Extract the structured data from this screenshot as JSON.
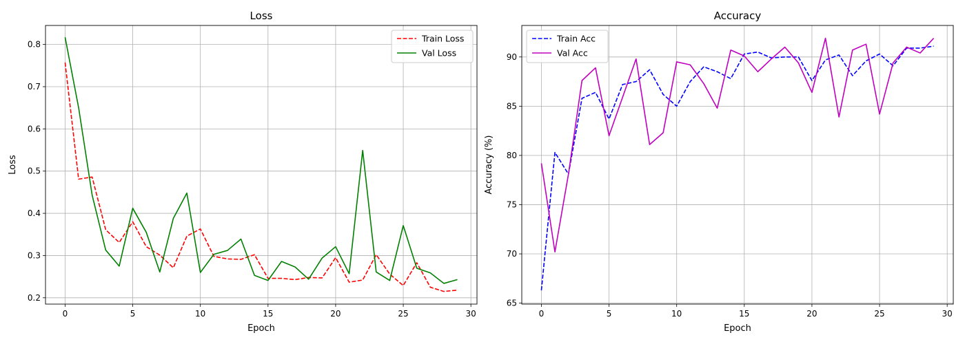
{
  "chart_data": [
    {
      "type": "line",
      "title": "Loss",
      "xlabel": "Epoch",
      "ylabel": "Loss",
      "xlim": [
        -1.45,
        30.45
      ],
      "ylim": [
        0.185,
        0.845
      ],
      "xticks": [
        0,
        5,
        10,
        15,
        20,
        25,
        30
      ],
      "yticks": [
        0.2,
        0.3,
        0.4,
        0.5,
        0.6,
        0.7,
        0.8
      ],
      "grid": true,
      "legend_position": "top-right",
      "x": [
        0,
        1,
        2,
        3,
        4,
        5,
        6,
        7,
        8,
        9,
        10,
        11,
        12,
        13,
        14,
        15,
        16,
        17,
        18,
        19,
        20,
        21,
        22,
        23,
        24,
        25,
        26,
        27,
        28,
        29
      ],
      "series": [
        {
          "name": "Train Loss",
          "color": "#ff0000",
          "linestyle": "dashed",
          "values": [
            0.757,
            0.481,
            0.486,
            0.361,
            0.331,
            0.38,
            0.321,
            0.301,
            0.271,
            0.346,
            0.363,
            0.298,
            0.292,
            0.291,
            0.302,
            0.246,
            0.246,
            0.243,
            0.248,
            0.247,
            0.295,
            0.237,
            0.242,
            0.302,
            0.256,
            0.229,
            0.283,
            0.225,
            0.215,
            0.218
          ]
        },
        {
          "name": "Val Loss",
          "color": "#008000",
          "linestyle": "solid",
          "values": [
            0.817,
            0.65,
            0.443,
            0.313,
            0.275,
            0.412,
            0.355,
            0.261,
            0.388,
            0.448,
            0.26,
            0.303,
            0.312,
            0.339,
            0.253,
            0.241,
            0.286,
            0.273,
            0.244,
            0.294,
            0.321,
            0.257,
            0.549,
            0.261,
            0.241,
            0.371,
            0.27,
            0.259,
            0.234,
            0.243
          ]
        }
      ]
    },
    {
      "type": "line",
      "title": "Accuracy",
      "xlabel": "Epoch",
      "ylabel": "Accuracy (%)",
      "xlim": [
        -1.45,
        30.45
      ],
      "ylim": [
        64.9,
        93.2
      ],
      "xticks": [
        0,
        5,
        10,
        15,
        20,
        25,
        30
      ],
      "yticks": [
        65,
        70,
        75,
        80,
        85,
        90
      ],
      "grid": true,
      "legend_position": "top-left",
      "x": [
        0,
        1,
        2,
        3,
        4,
        5,
        6,
        7,
        8,
        9,
        10,
        11,
        12,
        13,
        14,
        15,
        16,
        17,
        18,
        19,
        20,
        21,
        22,
        23,
        24,
        25,
        26,
        27,
        28,
        29
      ],
      "series": [
        {
          "name": "Train Acc",
          "color": "#0000ff",
          "linestyle": "dashed",
          "values": [
            66.3,
            80.3,
            78.1,
            85.8,
            86.4,
            83.7,
            87.2,
            87.5,
            88.7,
            86.2,
            85.0,
            87.5,
            89.0,
            88.5,
            87.8,
            90.3,
            90.5,
            89.9,
            90.0,
            90.0,
            87.6,
            89.7,
            90.2,
            88.1,
            89.6,
            90.3,
            89.1,
            90.9,
            90.9,
            91.1
          ]
        },
        {
          "name": "Val Acc",
          "color": "#bf00bf",
          "linestyle": "solid",
          "values": [
            79.2,
            70.2,
            78.1,
            87.6,
            88.9,
            82.0,
            85.9,
            89.8,
            81.1,
            82.3,
            89.5,
            89.2,
            87.3,
            84.8,
            90.7,
            90.1,
            88.5,
            89.8,
            91.0,
            89.4,
            86.4,
            91.9,
            83.9,
            90.7,
            91.3,
            84.2,
            89.4,
            91.0,
            90.4,
            91.9
          ]
        }
      ]
    }
  ]
}
